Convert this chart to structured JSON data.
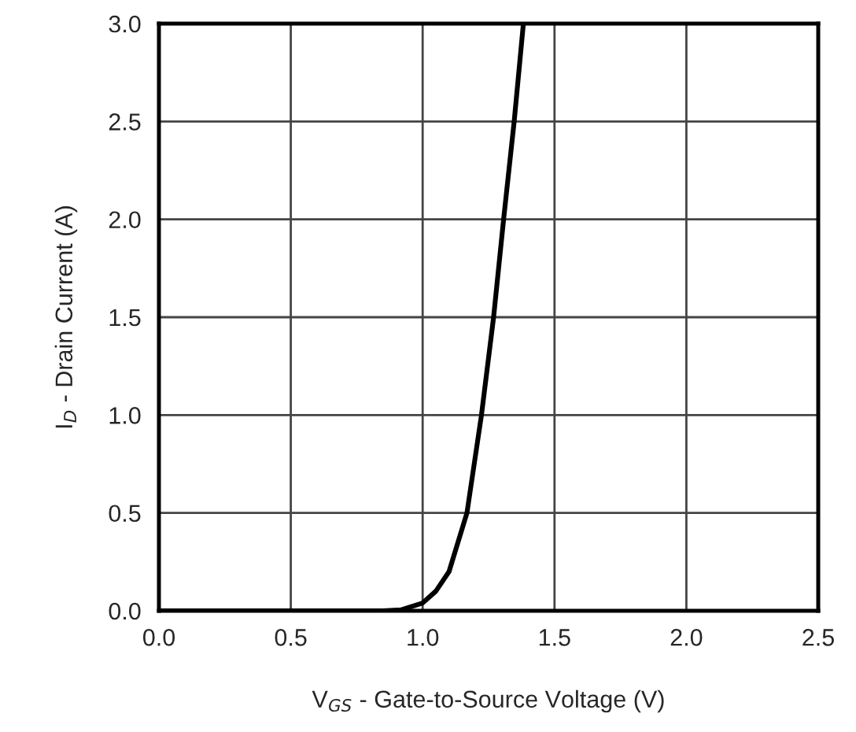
{
  "chart_data": {
    "type": "line",
    "xlabel": "V$_{GS}$ - Gate-to-Source Voltage (V)",
    "ylabel": "I$_{D}$ - Drain Current (A)",
    "series": [
      {
        "color": "#000000",
        "x": [
          0,
          0.85,
          0.92,
          1.0,
          1.05,
          1.1,
          1.168,
          1.223,
          1.269,
          1.307,
          1.347,
          1.382
        ],
        "values": [
          0,
          0,
          0.005,
          0.04,
          0.1,
          0.2,
          0.5,
          1.0,
          1.5,
          2.0,
          2.5,
          3.0
        ]
      }
    ],
    "xlim": [
      0,
      2.5
    ],
    "ylim": [
      0,
      3.0
    ],
    "xticks": [
      {
        "value": 0,
        "label": "0.0"
      },
      0.5,
      {
        "value": 1,
        "label": "1.0"
      },
      1.5,
      {
        "value": 2,
        "label": "2.0"
      },
      2.5
    ],
    "yticks": [
      {
        "value": 0,
        "label": "0.0"
      },
      0.5,
      {
        "value": 1,
        "label": "1.0"
      },
      1.5,
      {
        "value": 2,
        "label": "2.0"
      },
      2.5,
      {
        "value": 3,
        "label": "3.0"
      }
    ],
    "grid": true,
    "line_style": "solid",
    "marker": "none"
  }
}
